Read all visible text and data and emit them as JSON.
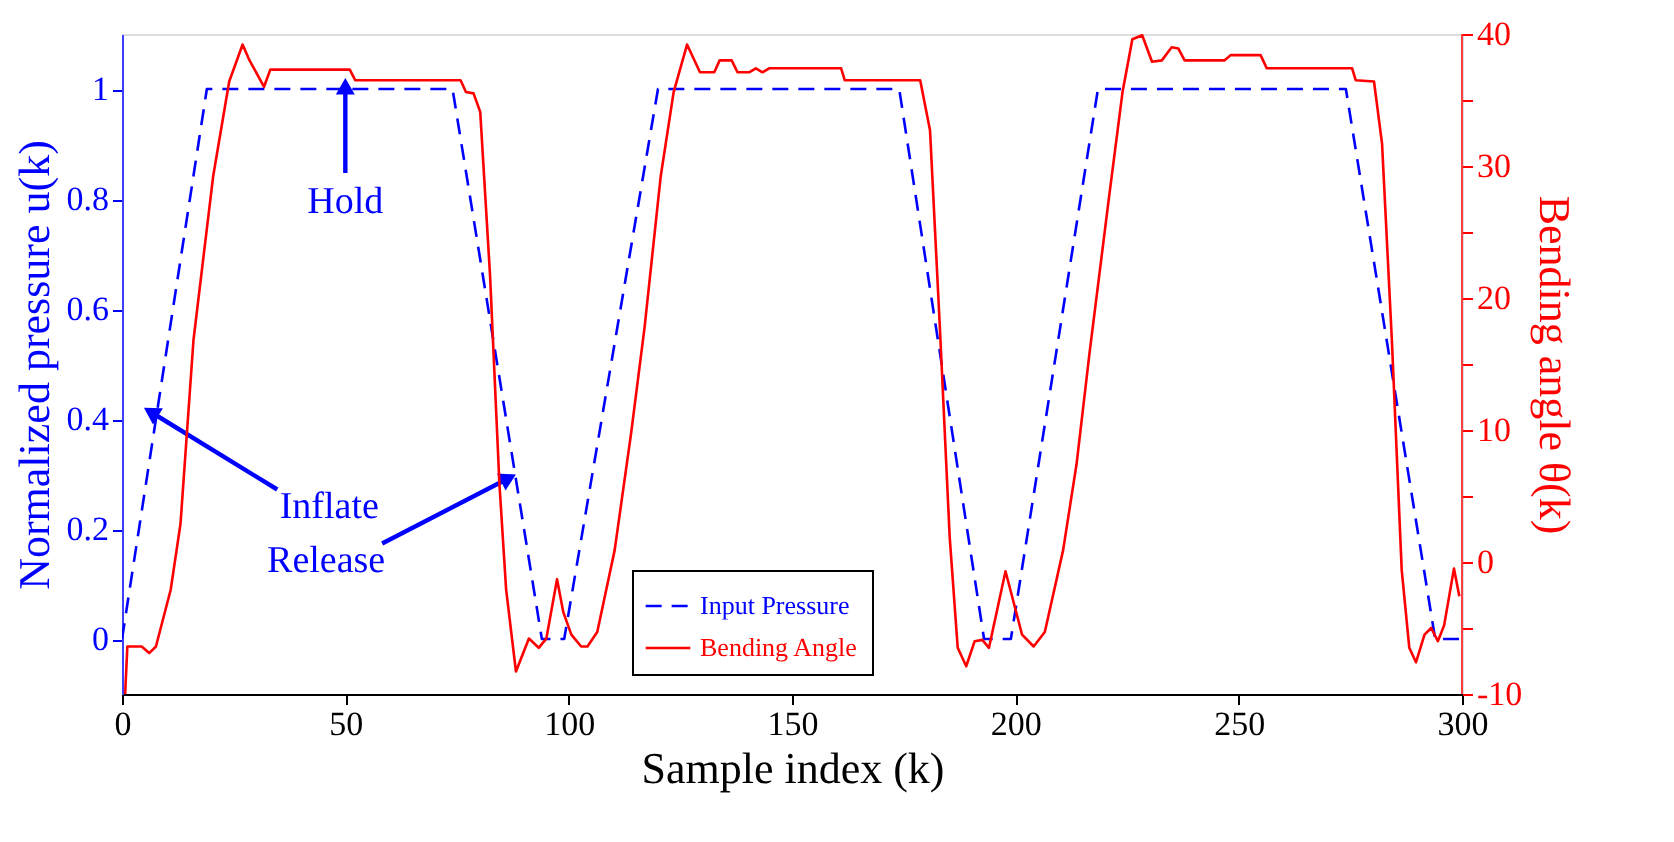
{
  "chart_data": {
    "type": "line",
    "xlabel": "Sample index (k)",
    "ylabel": "Normalized pressure u(k)",
    "y2label": "Bending angle θ(k)",
    "xlim": [
      0,
      300
    ],
    "xticks": [
      0,
      50,
      100,
      150,
      200,
      250,
      300
    ],
    "ylim": [
      -0.1,
      1.1
    ],
    "yticks": [
      0,
      0.2,
      0.4,
      0.6,
      0.8,
      1
    ],
    "y2lim": [
      -10,
      40
    ],
    "y2ticks": [
      -10,
      {
        "value": -5,
        "label": null
      },
      0,
      {
        "value": 5,
        "label": null
      },
      10,
      {
        "value": 15,
        "label": null
      },
      20,
      {
        "value": 25,
        "label": null
      },
      30,
      {
        "value": 35,
        "label": null
      },
      40
    ],
    "legend": "bottom",
    "grid": false,
    "marker": "none",
    "annotations": [
      {
        "text": "Hold",
        "x": 50,
        "y": 1
      },
      {
        "text": "Inflate",
        "x": 7,
        "y": 0.41
      },
      {
        "text": "Release",
        "x": 86,
        "y": 0.29
      }
    ],
    "series": [
      {
        "name": "Input Pressure",
        "color": "#0000ff",
        "line_style": "dashed",
        "x": [
          0,
          19,
          74,
          94,
          99,
          120,
          174,
          193,
          199,
          218.5,
          274,
          294,
          300
        ],
        "values": [
          0,
          1,
          1,
          0,
          0,
          1,
          1,
          0,
          0,
          1,
          1,
          0,
          0
        ]
      },
      {
        "name": "Bending Angle",
        "color": "#ff0000",
        "line_style": "solid",
        "axis": "y2",
        "x": [
          0.7,
          1.2,
          4.4,
          6.1,
          7.6,
          10.9,
          13.1,
          16,
          20.4,
          24,
          27,
          28.4,
          31.8,
          33.2,
          51,
          52.2,
          75.8,
          77,
          78.7,
          80.2,
          82.4,
          84.5,
          86,
          88.2,
          91.1,
          93.3,
          95,
          97.4,
          98.8,
          100.6,
          102.8,
          104.2,
          106.4,
          110.3,
          114,
          117,
          120.6,
          123.5,
          126.5,
          129.4,
          132.6,
          133.8,
          136.5,
          137.8,
          140.4,
          141.9,
          143.4,
          144.9,
          161,
          161.8,
          178.7,
          180.9,
          183.1,
          185.3,
          187.1,
          189,
          190.9,
          192.6,
          194.1,
          197.8,
          201.5,
          204.1,
          206.6,
          210.7,
          213.7,
          216.6,
          221,
          224,
          226.2,
          228.4,
          230.6,
          232.8,
          235,
          236.5,
          237.9,
          246.8,
          248.2,
          254.9,
          256.3,
          275.4,
          276.2,
          280.3,
          282.1,
          284.3,
          286.5,
          288.2,
          289.7,
          291.6,
          293.1,
          294.6,
          296,
          298.2,
          299.4
        ],
        "values": [
          -10,
          -6.4,
          -6.4,
          -6.9,
          -6.4,
          -2.1,
          2.9,
          16.8,
          29.2,
          36.4,
          39.2,
          38.1,
          36,
          37.3,
          37.3,
          36.5,
          36.5,
          35.6,
          35.5,
          34.1,
          21.7,
          5.9,
          -2.1,
          -8.3,
          -5.8,
          -6.5,
          -5.8,
          -1.3,
          -3.8,
          -5.5,
          -6.4,
          -6.4,
          -5.3,
          0.9,
          9.8,
          17.8,
          29.2,
          35.6,
          39.2,
          37.1,
          37.1,
          38,
          38,
          37.1,
          37.1,
          37.4,
          37.1,
          37.4,
          37.4,
          36.5,
          36.5,
          32.7,
          17.8,
          1.9,
          -6.5,
          -7.9,
          -6,
          -5.9,
          -6.5,
          -0.7,
          -5.5,
          -6.4,
          -5.3,
          0.9,
          7.4,
          15.8,
          27.7,
          35.6,
          39.6,
          39.9,
          37.9,
          38,
          39,
          38.9,
          38,
          38,
          38.4,
          38.4,
          37.4,
          37.4,
          36.5,
          36.4,
          31.7,
          16.8,
          -0.6,
          -6.5,
          -7.6,
          -5.5,
          -5,
          -6,
          -4.8,
          -0.5,
          -2.6
        ]
      }
    ]
  }
}
